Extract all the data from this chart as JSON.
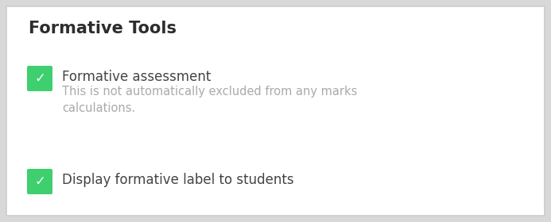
{
  "title": "Formative Tools",
  "title_fontsize": 15,
  "title_color": "#2d2d2d",
  "title_fontweight": "bold",
  "background_color": "#d8d8d8",
  "inner_background_color": "#ffffff",
  "border_color": "#cccccc",
  "checkbox_color": "#3ecf6e",
  "checkmark_color": "#ffffff",
  "checkmark_char": "✓",
  "items": [
    {
      "label": "Formative assessment",
      "label_color": "#444444",
      "label_fontsize": 12,
      "sublabel": "This is not automatically excluded from any marks\ncalculations.",
      "sublabel_color": "#aaaaaa",
      "sublabel_fontsize": 10.5,
      "checked": true
    },
    {
      "label": "Display formative label to students",
      "label_color": "#444444",
      "label_fontsize": 12,
      "sublabel": "",
      "sublabel_color": "#aaaaaa",
      "sublabel_fontsize": 10.5,
      "checked": true
    }
  ],
  "figwidth": 6.93,
  "figheight": 2.8,
  "dpi": 100
}
